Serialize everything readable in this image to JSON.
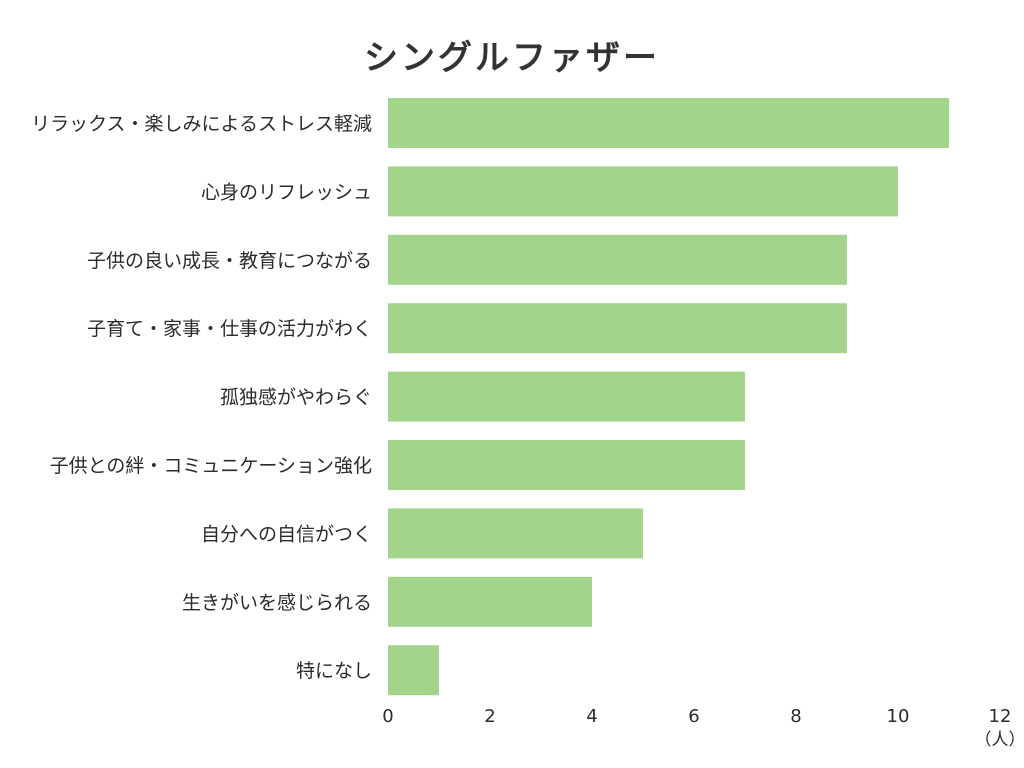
{
  "chart_data": {
    "type": "bar",
    "orientation": "horizontal",
    "title": "シングルファザー",
    "categories": [
      "リラックス・楽しみによるストレス軽減",
      "心身のリフレッシュ",
      "子供の良い成長・教育につながる",
      "子育て・家事・仕事の活力がわく",
      "孤独感がやわらぐ",
      "子供との絆・コミュニケーション強化",
      "自分への自信がつく",
      "生きがいを感じられる",
      "特になし"
    ],
    "values": [
      11,
      10,
      9,
      9,
      7,
      7,
      5,
      4,
      1
    ],
    "xlim": [
      0,
      12
    ],
    "xticks": [
      "0",
      "2",
      "4",
      "6",
      "8",
      "10",
      "12"
    ],
    "xunit": "（人）",
    "grid": false,
    "bar_color": "#a3d48c"
  }
}
